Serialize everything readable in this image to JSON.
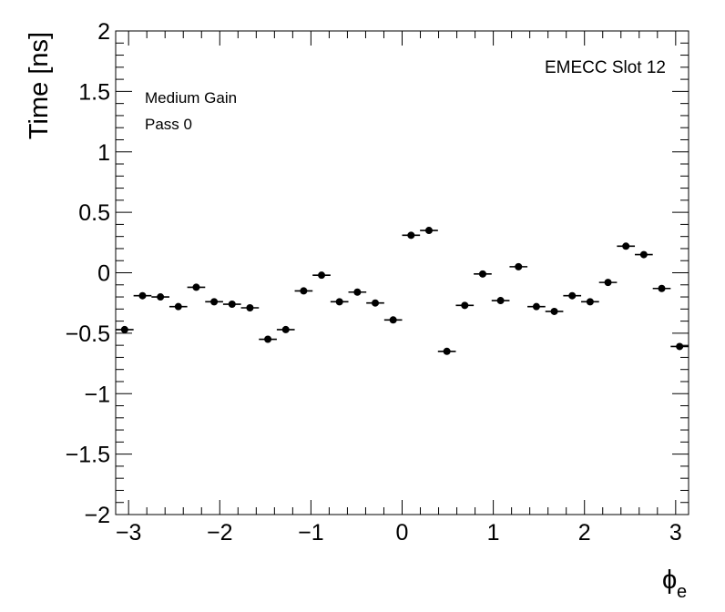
{
  "chart_data": {
    "type": "scatter",
    "title": "",
    "xlabel": "ϕ",
    "xlabel_sub": "e",
    "ylabel": "Time [ns]",
    "xlim": [
      -3.14159,
      3.14159
    ],
    "ylim": [
      -2,
      2
    ],
    "xticks": [
      -3,
      -2,
      -1,
      0,
      1,
      2,
      3
    ],
    "xtick_labels": [
      "−3",
      "−2",
      "−1",
      "0",
      "1",
      "2",
      "3"
    ],
    "yticks": [
      -2,
      -1.5,
      -1,
      -0.5,
      0,
      0.5,
      1,
      1.5,
      2
    ],
    "ytick_labels": [
      "−2",
      "−1.5",
      "−1",
      "−0.5",
      "0",
      "0.5",
      "1",
      "1.5",
      "2"
    ],
    "grid": false,
    "annotations": {
      "top_left": [
        "Medium Gain",
        "Pass 0"
      ],
      "top_right": "EMECC Slot 12"
    },
    "marker_color": "#000000",
    "bin_half_width": 0.0982,
    "series": [
      {
        "x": [
          -3.0434,
          -2.8471,
          -2.6507,
          -2.4544,
          -2.258,
          -2.0617,
          -1.8653,
          -1.669,
          -1.4726,
          -1.2763,
          -1.0799,
          -0.8836,
          -0.6872,
          -0.4909,
          -0.2945,
          -0.0982,
          0.0982,
          0.2945,
          0.4909,
          0.6872,
          0.8836,
          1.0799,
          1.2763,
          1.4726,
          1.669,
          1.8653,
          2.0617,
          2.258,
          2.4544,
          2.6507,
          2.8471,
          3.0434
        ],
        "y": [
          -0.47,
          -0.19,
          -0.2,
          -0.28,
          -0.12,
          -0.24,
          -0.26,
          -0.29,
          -0.55,
          -0.47,
          -0.15,
          -0.02,
          -0.24,
          -0.16,
          -0.25,
          -0.39,
          0.31,
          0.35,
          -0.65,
          -0.27,
          -0.01,
          -0.23,
          0.05,
          -0.28,
          -0.32,
          -0.19,
          -0.24,
          -0.08,
          0.22,
          0.15,
          -0.13,
          -0.61
        ]
      }
    ]
  }
}
